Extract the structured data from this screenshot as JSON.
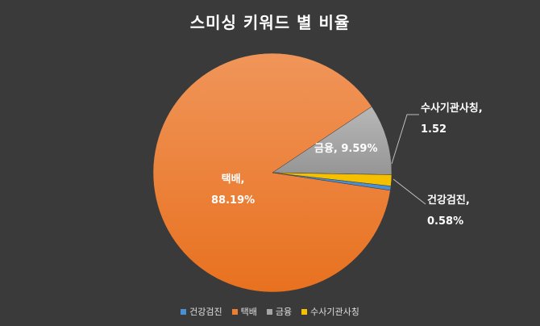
{
  "chart_data": {
    "type": "pie",
    "title": "스미싱 키워드 별 비율",
    "categories": [
      "건강검진",
      "택배",
      "금융",
      "수사기관사칭"
    ],
    "values": [
      0.58,
      88.19,
      9.59,
      1.52
    ],
    "colors": [
      "#4a8fd1",
      "#ed7d31",
      "#a5a5a5",
      "#f5c000"
    ],
    "legend_position": "bottom",
    "labels": {
      "health": {
        "name": "건강검진,",
        "value": "0.58%"
      },
      "delivery": {
        "name": "택배,",
        "value": "88.19%"
      },
      "finance": {
        "text": "금융, 9.59%"
      },
      "police": {
        "name": "수사기관사칭,",
        "value": "1.52"
      }
    }
  }
}
